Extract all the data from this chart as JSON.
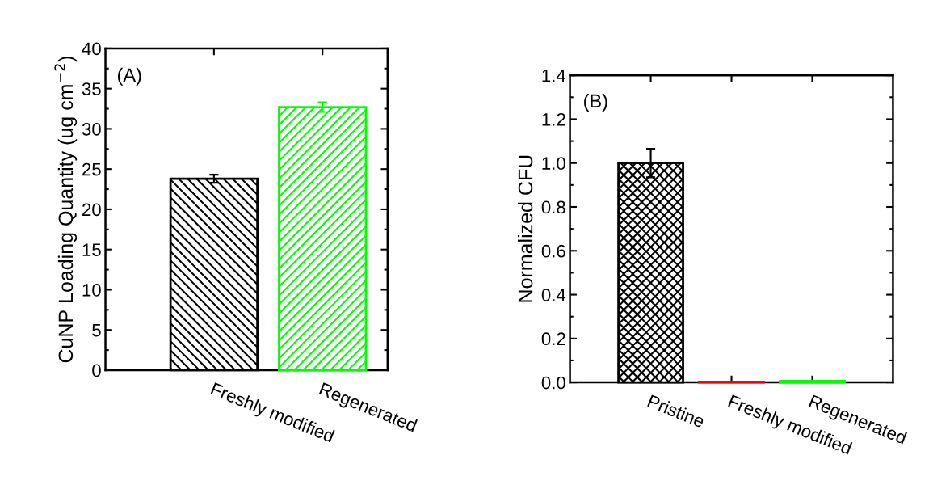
{
  "chart_data": [
    {
      "type": "bar",
      "ylabel": "CuNP Loading Quantity (ug cm$^{−2}$)",
      "annotations": [
        "(A)"
      ],
      "categories": [
        "Freshly modified",
        "Regenerated"
      ],
      "values": [
        23.8,
        32.7
      ],
      "errors": [
        0.5,
        0.6
      ],
      "colors": [
        "#000000",
        "#00ff00"
      ],
      "ylim": [
        0,
        40
      ],
      "yticks": [
        0,
        5,
        10,
        15,
        20,
        25,
        30,
        35,
        40
      ]
    },
    {
      "type": "bar",
      "ylabel": "Normalized CFU",
      "annotations": [
        "(B)"
      ],
      "categories": [
        "Pristine",
        "Freshly modified",
        "Regenerated"
      ],
      "values": [
        1.0,
        0.003,
        0.006
      ],
      "errors": [
        0.065,
        null,
        null
      ],
      "colors": [
        "#000000",
        "#ff0000",
        "#00ff00"
      ],
      "ylim": [
        0,
        1.4
      ],
      "yticks": [
        {
          "value": 0,
          "label": "0.0"
        },
        {
          "value": 0.2,
          "label": "0.2"
        },
        {
          "value": 0.4,
          "label": "0.4"
        },
        {
          "value": 0.6,
          "label": "0.6"
        },
        {
          "value": 0.8,
          "label": "0.8"
        },
        {
          "value": 1.0,
          "label": "1.0"
        },
        {
          "value": 1.2,
          "label": "1.2"
        },
        {
          "value": 1.4,
          "label": "1.4"
        }
      ]
    }
  ]
}
